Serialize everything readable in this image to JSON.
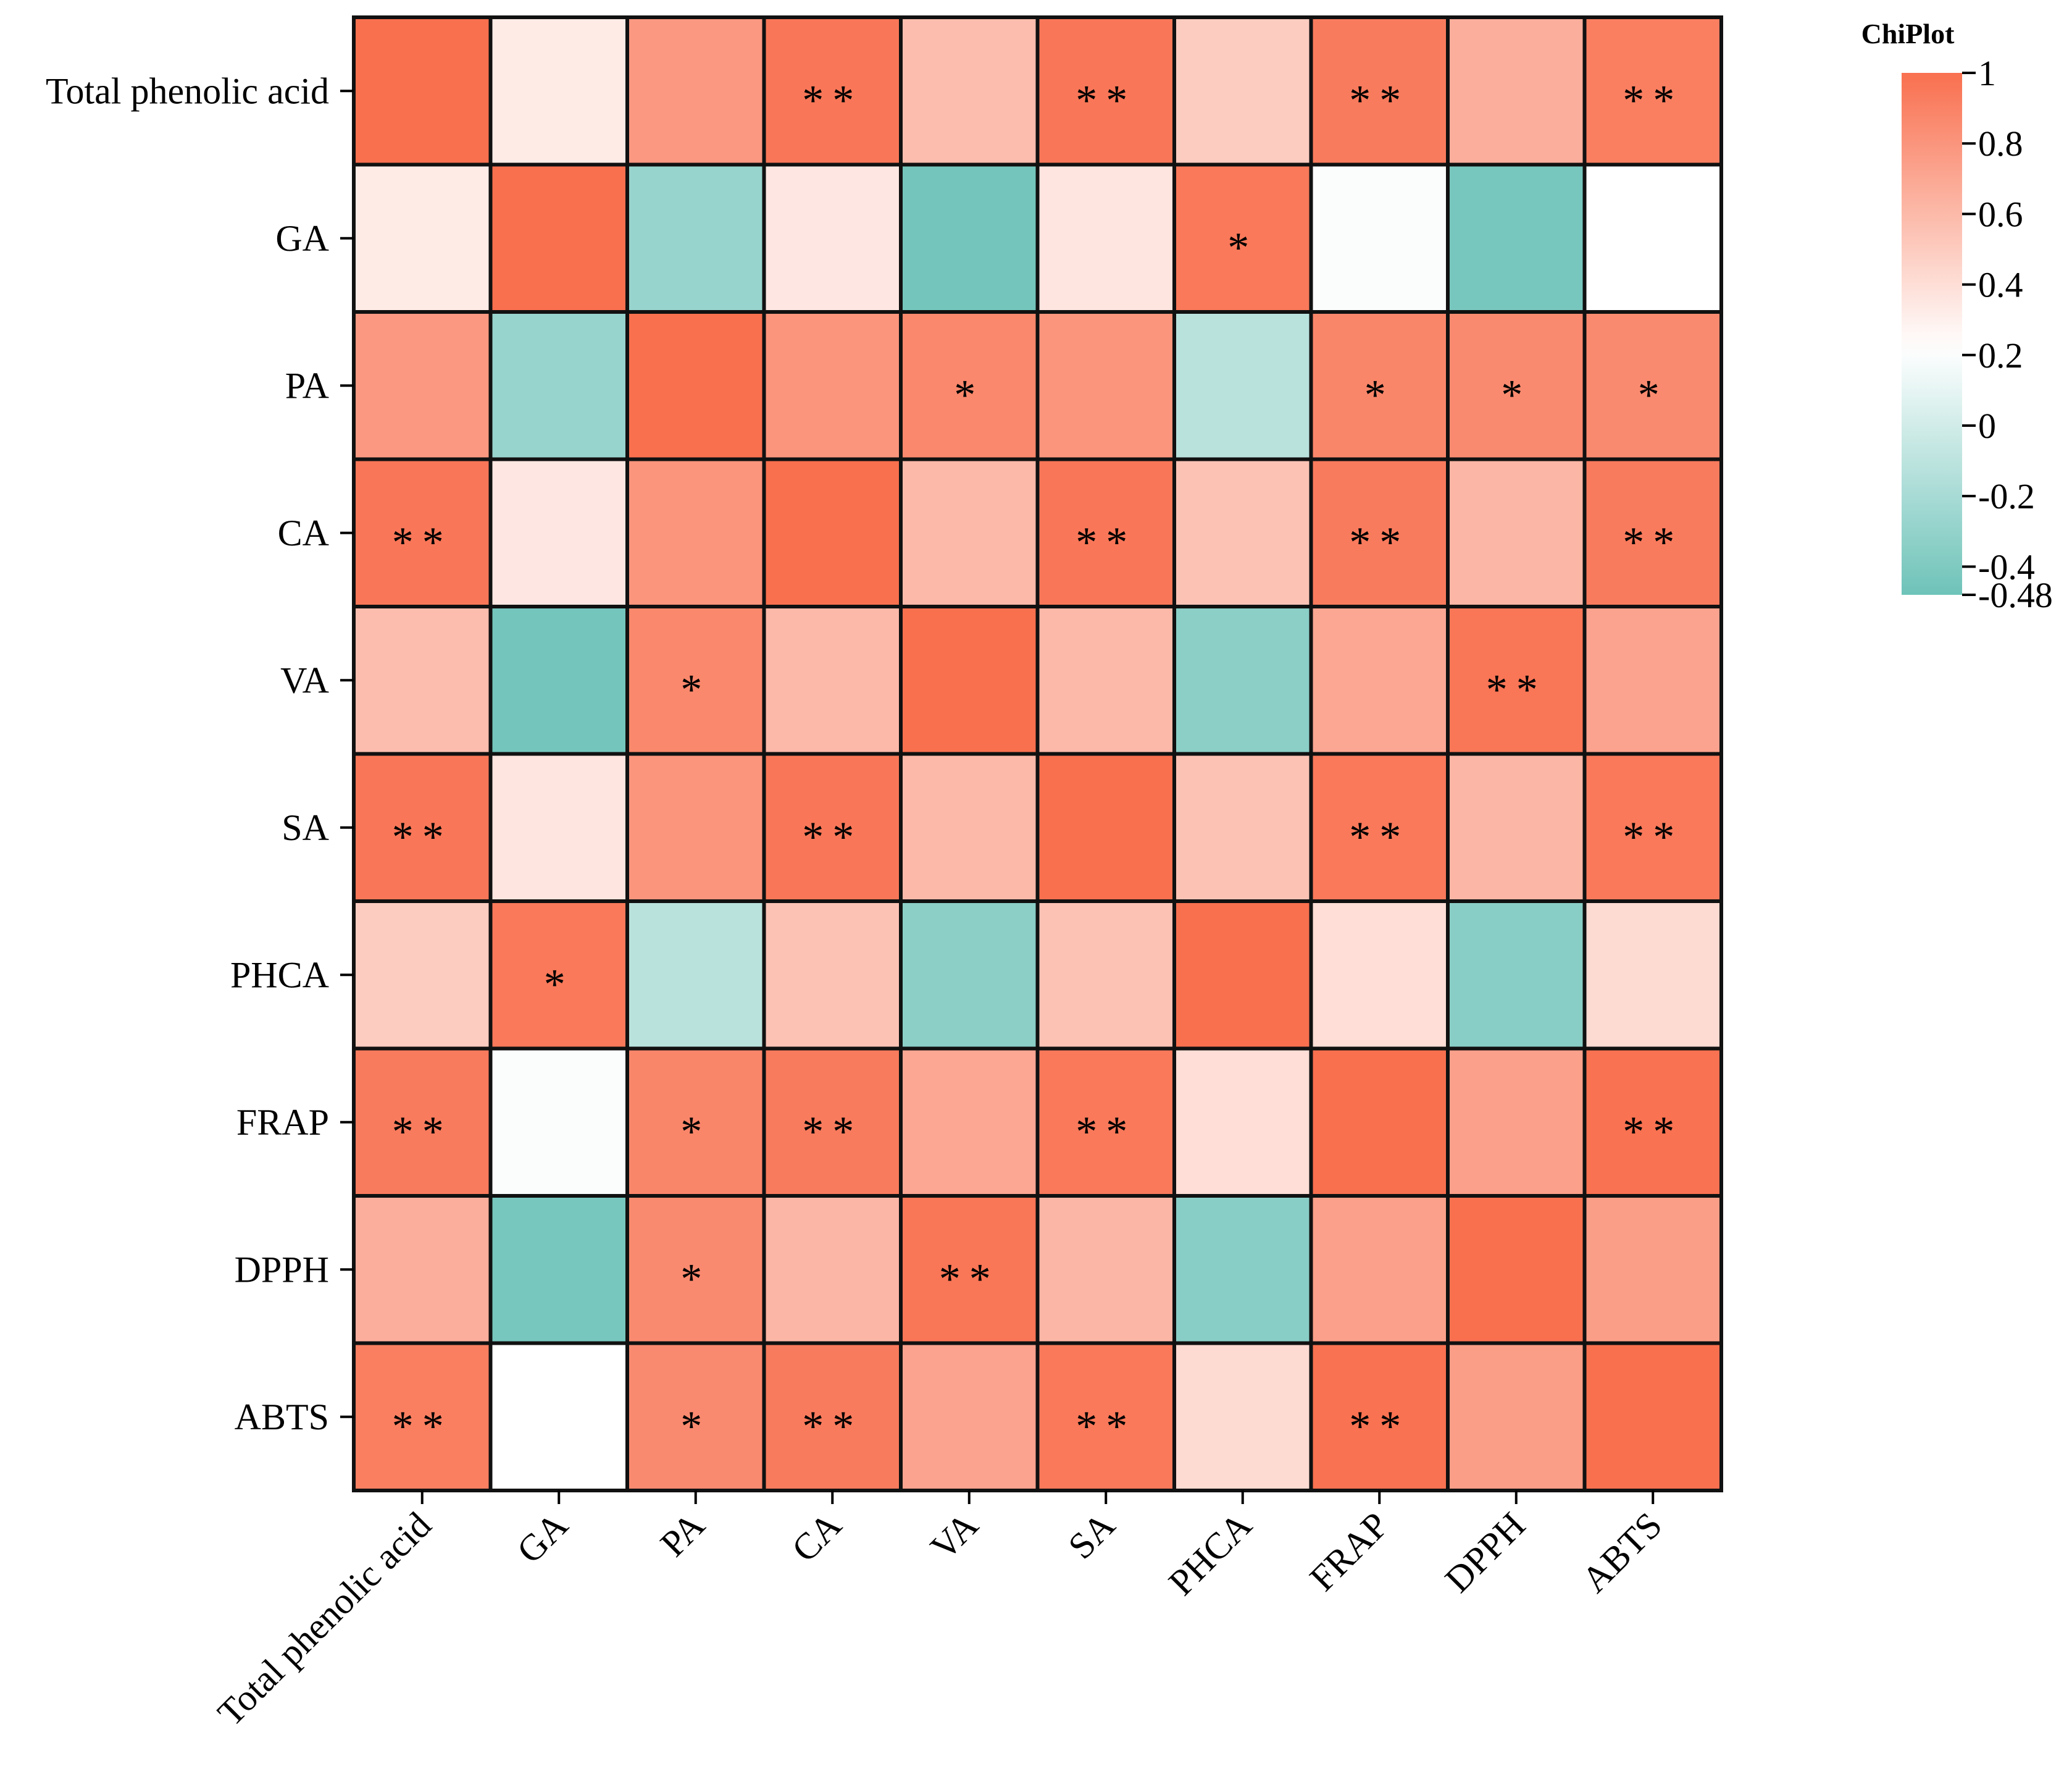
{
  "chart_data": {
    "type": "heatmap",
    "x_labels": [
      "Total phenolic acid",
      "GA",
      "PA",
      "CA",
      "VA",
      "SA",
      "PHCA",
      "FRAP",
      "DPPH",
      "ABTS"
    ],
    "y_labels": [
      "Total phenolic acid",
      "GA",
      "PA",
      "CA",
      "VA",
      "SA",
      "PHCA",
      "FRAP",
      "DPPH",
      "ABTS"
    ],
    "values": [
      [
        1.0,
        0.33,
        0.78,
        0.96,
        0.58,
        0.96,
        0.5,
        0.94,
        0.66,
        0.92
      ],
      [
        0.33,
        1.0,
        -0.28,
        0.35,
        -0.45,
        0.36,
        0.95,
        0.2,
        -0.43,
        0.22
      ],
      [
        0.78,
        -0.28,
        1.0,
        0.8,
        0.87,
        0.8,
        -0.12,
        0.88,
        0.86,
        0.86
      ],
      [
        0.96,
        0.35,
        0.8,
        1.0,
        0.6,
        0.96,
        0.55,
        0.94,
        0.62,
        0.94
      ],
      [
        0.58,
        -0.45,
        0.87,
        0.6,
        1.0,
        0.6,
        -0.34,
        0.7,
        0.97,
        0.72
      ],
      [
        0.96,
        0.36,
        0.8,
        0.96,
        0.6,
        1.0,
        0.55,
        0.95,
        0.62,
        0.95
      ],
      [
        0.5,
        0.95,
        -0.12,
        0.55,
        -0.34,
        0.55,
        1.0,
        0.4,
        -0.35,
        0.42
      ],
      [
        0.94,
        0.2,
        0.88,
        0.94,
        0.7,
        0.95,
        0.4,
        1.0,
        0.74,
        0.99
      ],
      [
        0.66,
        -0.43,
        0.86,
        0.62,
        0.97,
        0.62,
        -0.35,
        0.74,
        1.0,
        0.75
      ],
      [
        0.92,
        0.22,
        0.86,
        0.94,
        0.72,
        0.95,
        0.42,
        0.99,
        0.75,
        1.0
      ]
    ],
    "significance": [
      [
        "",
        "",
        "",
        "**",
        "",
        "**",
        "",
        "**",
        "",
        "**"
      ],
      [
        "",
        "",
        "",
        "",
        "",
        "",
        "*",
        "",
        "",
        ""
      ],
      [
        "",
        "",
        "",
        "",
        "*",
        "",
        "",
        "*",
        "*",
        "*"
      ],
      [
        "**",
        "",
        "",
        "",
        "",
        "**",
        "",
        "**",
        "",
        "**"
      ],
      [
        "",
        "",
        "*",
        "",
        "",
        "",
        "",
        "",
        "**",
        ""
      ],
      [
        "**",
        "",
        "",
        "**",
        "",
        "",
        "",
        "**",
        "",
        "**"
      ],
      [
        "",
        "*",
        "",
        "",
        "",
        "",
        "",
        "",
        "",
        ""
      ],
      [
        "**",
        "",
        "*",
        "**",
        "",
        "**",
        "",
        "",
        "",
        "**"
      ],
      [
        "",
        "",
        "*",
        "",
        "**",
        "",
        "",
        "",
        "",
        ""
      ],
      [
        "**",
        "",
        "*",
        "**",
        "",
        "**",
        "",
        "**",
        "",
        ""
      ]
    ],
    "colorbar": {
      "title": "ChiPlot",
      "min": -0.48,
      "max": 1,
      "ticks": [
        "1",
        "0.8",
        "0.6",
        "0.4",
        "0.2",
        "0",
        "-0.2",
        "-0.4",
        "-0.48"
      ],
      "tick_values": [
        1,
        0.8,
        0.6,
        0.4,
        0.2,
        0,
        -0.2,
        -0.4,
        -0.48
      ],
      "colors": {
        "high": "#f9704f",
        "mid": "#ffffff",
        "low": "#6ec3b9"
      },
      "mid_value": 0.22
    }
  }
}
